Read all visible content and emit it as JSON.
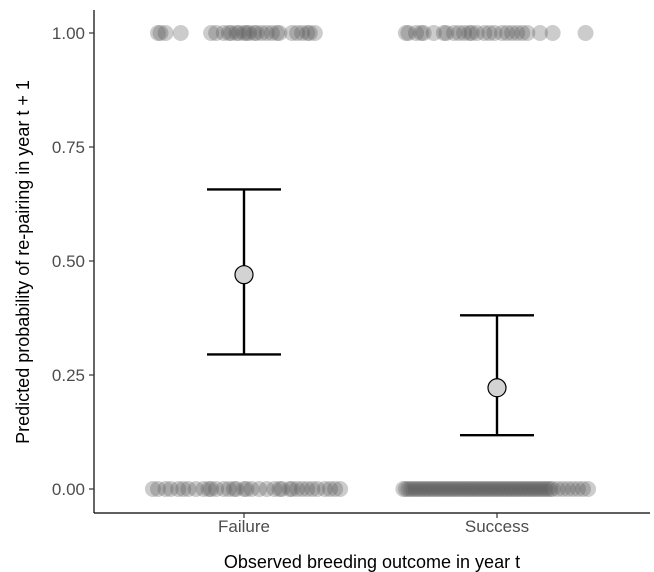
{
  "chart_data": {
    "type": "scatter",
    "xlabel": "Observed breeding outcome in year t",
    "ylabel": "Predicted probability of re-pairing in year t + 1",
    "categories": [
      "Failure",
      "Success"
    ],
    "ylim": [
      0,
      1
    ],
    "yticks": [
      0,
      0.25,
      0.5,
      0.75,
      1
    ],
    "ytick_labels": [
      "0.00",
      "0.25",
      "0.50",
      "0.75",
      "1.00"
    ],
    "grid": false,
    "estimates": [
      {
        "category": "Failure",
        "mean": 0.47,
        "lower": 0.295,
        "upper": 0.657
      },
      {
        "category": "Success",
        "mean": 0.222,
        "lower": 0.118,
        "upper": 0.381
      }
    ],
    "observations": [
      {
        "category": "Failure",
        "y": 1,
        "x_jitter": [
          -0.34,
          -0.33,
          -0.31,
          -0.25,
          -0.13,
          -0.11,
          -0.08,
          -0.06,
          -0.05,
          -0.03,
          -0.02,
          0.0,
          0.01,
          0.02,
          0.04,
          0.05,
          0.07,
          0.09,
          0.11,
          0.13,
          0.14,
          0.19,
          0.21,
          0.23,
          0.25,
          0.26,
          0.28
        ]
      },
      {
        "category": "Failure",
        "y": 0,
        "x_jitter": [
          -0.36,
          -0.34,
          -0.31,
          -0.29,
          -0.26,
          -0.24,
          -0.22,
          -0.19,
          -0.16,
          -0.14,
          -0.13,
          -0.11,
          -0.08,
          -0.06,
          -0.04,
          -0.03,
          0.0,
          0.01,
          0.03,
          0.06,
          0.09,
          0.12,
          0.14,
          0.15,
          0.18,
          0.19,
          0.21,
          0.23,
          0.25,
          0.27,
          0.29,
          0.32,
          0.34,
          0.36,
          0.38
        ]
      },
      {
        "category": "Success",
        "y": 1,
        "x_jitter": [
          -0.36,
          -0.35,
          -0.32,
          -0.3,
          -0.29,
          -0.25,
          -0.21,
          -0.2,
          -0.17,
          -0.15,
          -0.13,
          -0.11,
          -0.1,
          -0.08,
          -0.05,
          -0.03,
          -0.01,
          0.02,
          0.04,
          0.06,
          0.08,
          0.1,
          0.12,
          0.17,
          0.22,
          0.35
        ]
      },
      {
        "category": "Success",
        "y": 0,
        "x_jitter": [
          -0.37,
          -0.36,
          -0.35,
          -0.34,
          -0.33,
          -0.32,
          -0.31,
          -0.3,
          -0.29,
          -0.28,
          -0.27,
          -0.26,
          -0.25,
          -0.24,
          -0.23,
          -0.22,
          -0.21,
          -0.2,
          -0.19,
          -0.18,
          -0.17,
          -0.16,
          -0.15,
          -0.14,
          -0.13,
          -0.12,
          -0.11,
          -0.1,
          -0.09,
          -0.08,
          -0.07,
          -0.06,
          -0.05,
          -0.04,
          -0.03,
          -0.02,
          -0.01,
          0.0,
          0.01,
          0.02,
          0.03,
          0.04,
          0.05,
          0.06,
          0.07,
          0.08,
          0.09,
          0.1,
          0.11,
          0.12,
          0.13,
          0.14,
          0.15,
          0.16,
          0.17,
          0.18,
          0.19,
          0.2,
          0.21,
          0.22,
          0.24,
          0.26,
          0.28,
          0.3,
          0.32,
          0.34,
          0.36
        ]
      }
    ]
  }
}
